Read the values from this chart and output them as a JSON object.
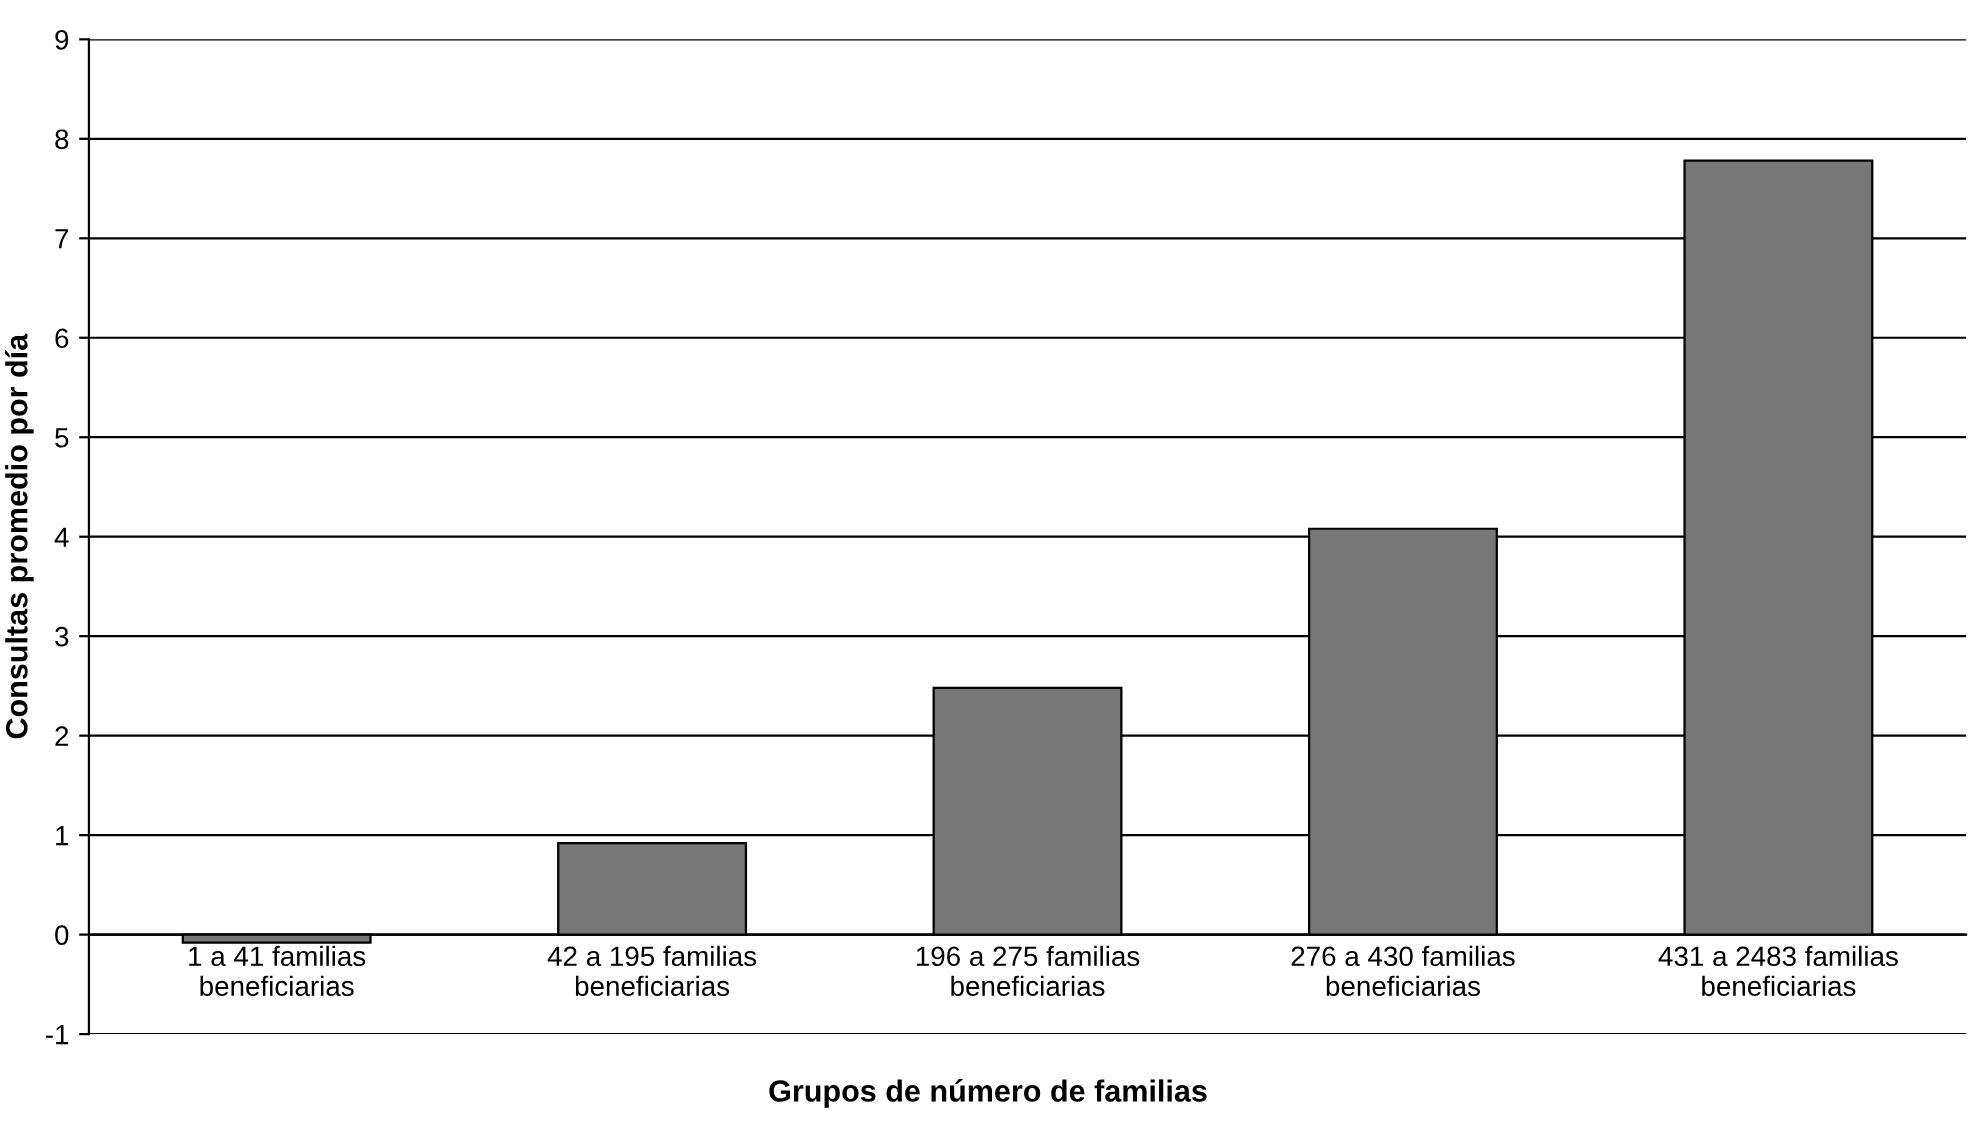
{
  "chart_data": {
    "type": "bar",
    "xlabel": "Grupos de número de familias",
    "ylabel": "Consultas promedio por día",
    "categories": [
      "1 a 41 familias\nbeneficiarias",
      "42 a 195 familias\nbeneficiarias",
      "196 a 275 familias\nbeneficiarias",
      "276 a 430 familias\nbeneficiarias",
      "431 a 2483 familias\nbeneficiarias"
    ],
    "values": [
      -0.08,
      0.92,
      2.48,
      4.08,
      7.78
    ],
    "color": "#777777",
    "ylim": [
      -1,
      9
    ],
    "yticks": [
      -1,
      0,
      1,
      2,
      3,
      4,
      5,
      6,
      7,
      8,
      9
    ],
    "grid": "y"
  }
}
